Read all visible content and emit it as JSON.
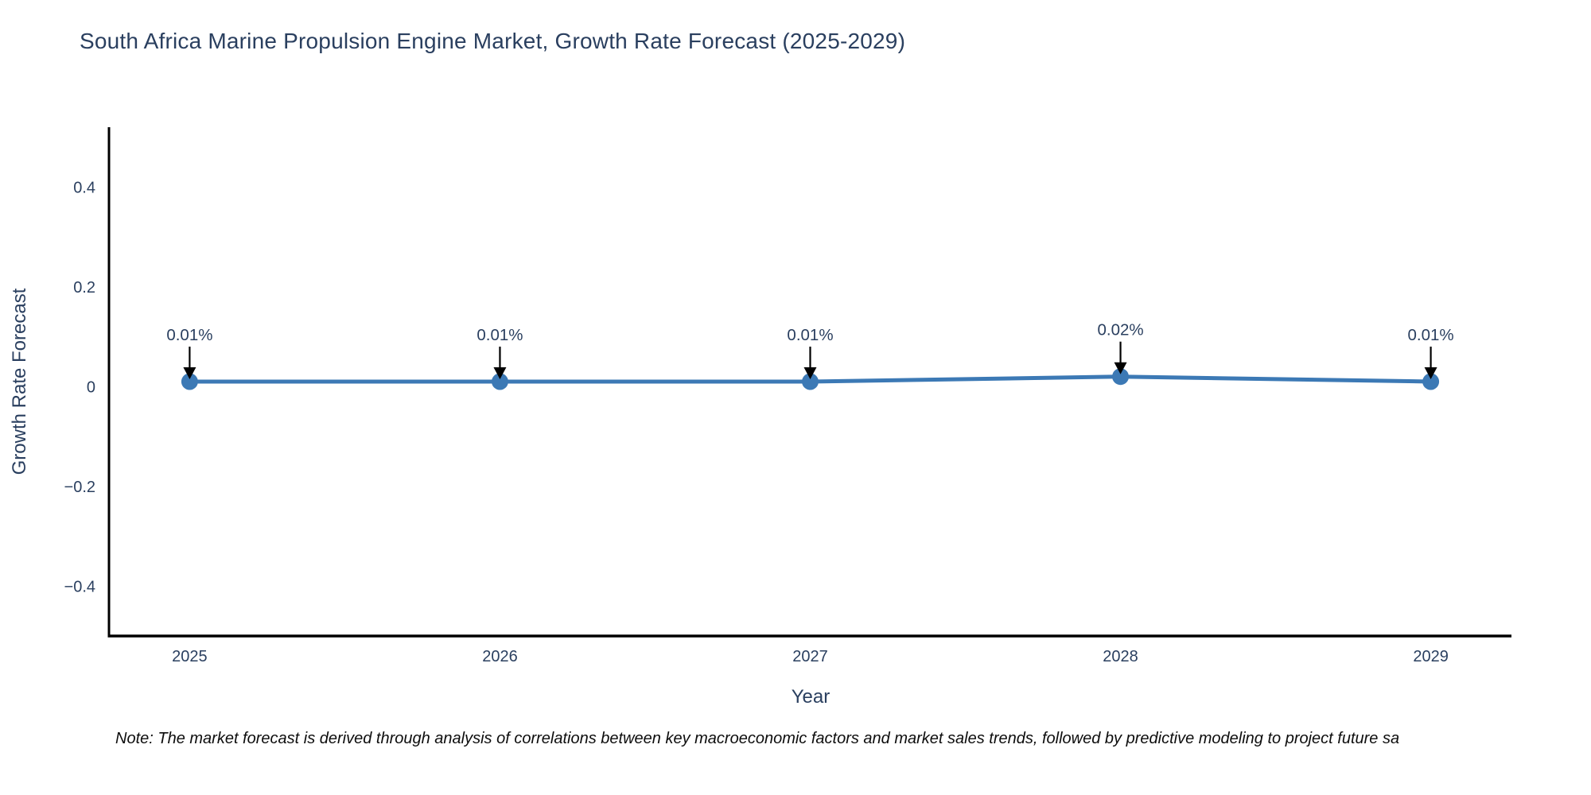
{
  "header": {
    "title": "South Africa Marine Propulsion Engine Market, Growth Rate Forecast (2025-2029)"
  },
  "chart_data": {
    "type": "line",
    "title": "South Africa Marine Propulsion Engine Market, Growth Rate Forecast (2025-2029)",
    "x": [
      2025,
      2026,
      2027,
      2028,
      2029
    ],
    "x_tick_labels": [
      "2025",
      "2026",
      "2027",
      "2028",
      "2029"
    ],
    "series": [
      {
        "name": "Growth Rate Forecast",
        "values": [
          0.01,
          0.01,
          0.01,
          0.02,
          0.01
        ],
        "point_labels": [
          "0.01%",
          "0.01%",
          "0.01%",
          "0.02%",
          "0.01%"
        ]
      }
    ],
    "xlabel": "Year",
    "ylabel": "Growth Rate Forecast",
    "yticks": [
      0.4,
      0.2,
      0,
      -0.2,
      -0.4
    ],
    "ytick_labels": [
      "0.4",
      "0.2",
      "0",
      "−0.2",
      "−0.4"
    ],
    "xlim": [
      2024.74,
      2029.26
    ],
    "ylim": [
      -0.5,
      0.52
    ],
    "grid": false,
    "legend": "none",
    "colors": {
      "line": "#3c79b5",
      "marker": "#3c79b5",
      "axis": "#000000",
      "tick_label": "#2a3f5f",
      "annotation_text": "#2a3f5f",
      "annotation_arrow": "#000000",
      "background": "#ffffff"
    }
  },
  "footer": {
    "note": "Note: The market forecast is derived through analysis of correlations between key macroeconomic factors and market sales trends, followed by predictive modeling to project future sa"
  }
}
